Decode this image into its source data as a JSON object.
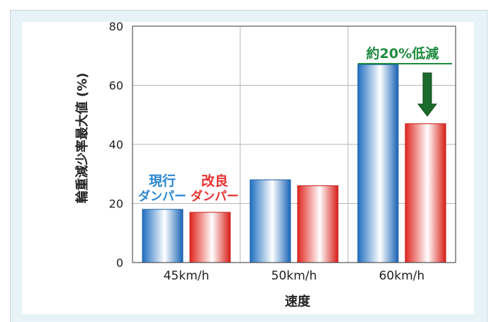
{
  "chart_data": {
    "type": "bar",
    "categories": [
      "45km/h",
      "50km/h",
      "60km/h"
    ],
    "series": [
      {
        "name": "現行ダンパー",
        "values": [
          18,
          28,
          67
        ],
        "color": "#2b86d1"
      },
      {
        "name": "改良ダンパー",
        "values": [
          17,
          26,
          47
        ],
        "color": "#e8312f"
      }
    ],
    "xlabel": "速度",
    "ylabel": "輪重減少率最大値 (%)",
    "ylim": [
      0,
      80
    ],
    "yticks": [
      "0",
      "20",
      "40",
      "60",
      "80"
    ],
    "grid": true,
    "legend_labels": {
      "current": [
        "現行",
        "ダンパー"
      ],
      "improved": [
        "改良",
        "ダンパー"
      ]
    },
    "annotation": {
      "text": "約20%低減",
      "color": "#1d8a3e",
      "arrow_color": "#1b6b2c"
    }
  }
}
